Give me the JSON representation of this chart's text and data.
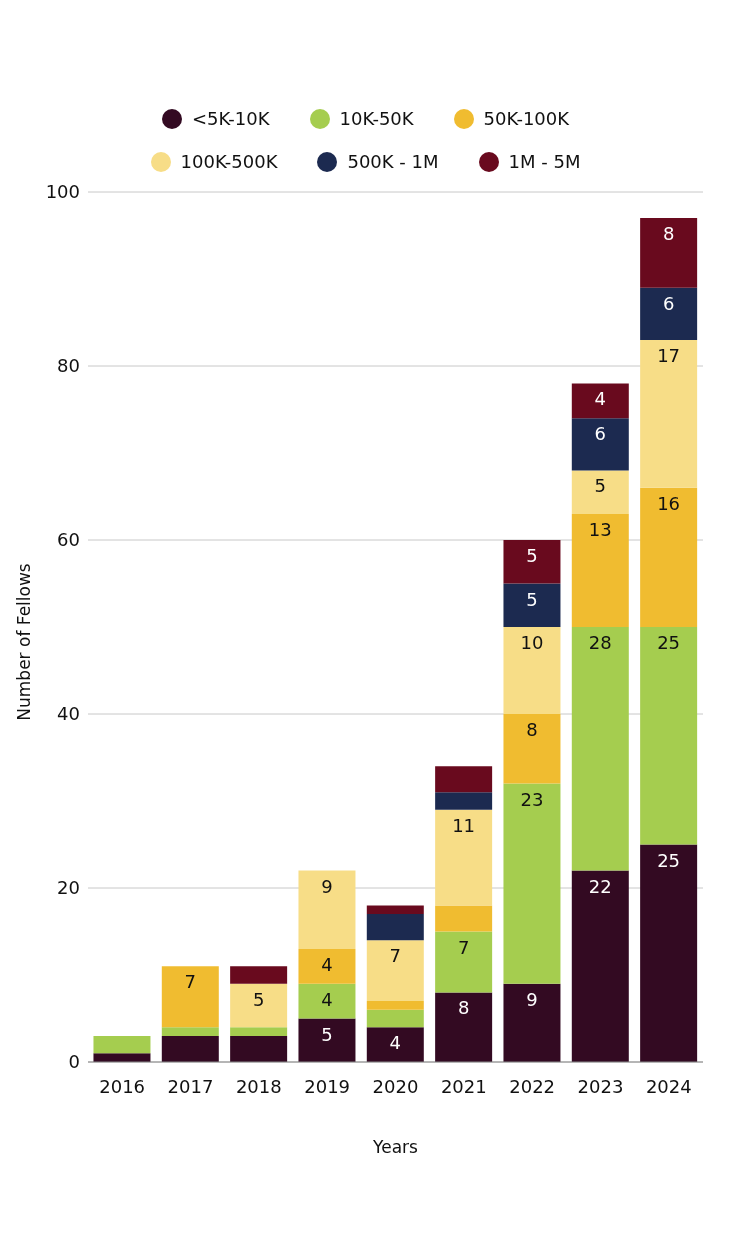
{
  "chart_data": {
    "type": "bar",
    "stacked": true,
    "xlabel": "Years",
    "ylabel": "Number of Fellows",
    "categories": [
      "2016",
      "2017",
      "2018",
      "2019",
      "2020",
      "2021",
      "2022",
      "2023",
      "2024"
    ],
    "series": [
      {
        "name": "<5K-10K",
        "color": "#330a22",
        "values": [
          1,
          3,
          3,
          5,
          4,
          8,
          9,
          22,
          25
        ],
        "value_labels": [
          null,
          null,
          null,
          "5",
          "4",
          "8",
          "9",
          "22",
          "25"
        ]
      },
      {
        "name": "10K-50K",
        "color": "#a5cd4f",
        "values": [
          2,
          1,
          1,
          4,
          2,
          7,
          23,
          28,
          25
        ],
        "value_labels": [
          null,
          null,
          null,
          "4",
          null,
          "7",
          "23",
          "28",
          "25"
        ]
      },
      {
        "name": "50K-100K",
        "color": "#f0bc30",
        "values": [
          null,
          7,
          null,
          4,
          1,
          3,
          8,
          13,
          16
        ],
        "value_labels": [
          null,
          "7",
          null,
          "4",
          null,
          null,
          "8",
          "13",
          "16"
        ]
      },
      {
        "name": "100K-500K",
        "color": "#f7dd87",
        "values": [
          null,
          null,
          5,
          9,
          7,
          11,
          10,
          5,
          17
        ],
        "value_labels": [
          null,
          null,
          "5",
          "9",
          "7",
          "11",
          "10",
          "5",
          "17"
        ]
      },
      {
        "name": "500K - 1M",
        "color": "#1c2a50",
        "values": [
          null,
          null,
          null,
          null,
          3,
          2,
          5,
          6,
          6
        ],
        "value_labels": [
          null,
          null,
          null,
          null,
          null,
          null,
          "5",
          "6",
          "6"
        ]
      },
      {
        "name": "1M - 5M",
        "color": "#690a1e",
        "values": [
          null,
          null,
          2,
          null,
          1,
          3,
          5,
          4,
          8
        ],
        "value_labels": [
          null,
          null,
          null,
          null,
          null,
          null,
          "5",
          "4",
          "8"
        ]
      }
    ],
    "ylim": [
      0,
      100
    ],
    "yticks": [
      0,
      20,
      40,
      60,
      80,
      100
    ],
    "grid": "y",
    "legend": "top"
  }
}
